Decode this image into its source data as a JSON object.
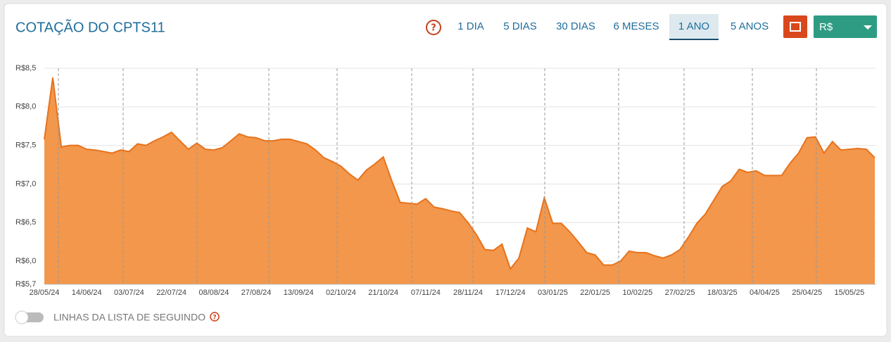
{
  "header": {
    "title": "COTAÇÃO DO CPTS11",
    "periods": [
      "1 DIA",
      "5 DIAS",
      "30 DIAS",
      "6 MESES",
      "1 ANO",
      "5 ANOS"
    ],
    "currency": "R$"
  },
  "chart_data": {
    "type": "area",
    "color": "#f2974b",
    "line_color": "#e8721c",
    "grid": true,
    "categories": [
      "28/05/24",
      null,
      null,
      null,
      null,
      "14/06/24",
      null,
      null,
      null,
      null,
      "03/07/24",
      null,
      null,
      null,
      null,
      "22/07/24",
      null,
      null,
      null,
      null,
      "08/08/24",
      null,
      null,
      null,
      null,
      "27/08/24",
      null,
      null,
      null,
      null,
      "13/09/24",
      null,
      null,
      null,
      null,
      "02/10/24",
      null,
      null,
      null,
      null,
      "21/10/24",
      null,
      null,
      null,
      null,
      "07/11/24",
      null,
      null,
      null,
      null,
      "28/11/24",
      null,
      null,
      null,
      null,
      "17/12/24",
      null,
      null,
      null,
      null,
      "03/01/25",
      null,
      null,
      null,
      null,
      "22/01/25",
      null,
      null,
      null,
      null,
      "10/02/25",
      null,
      null,
      null,
      null,
      "27/02/25",
      null,
      null,
      null,
      null,
      "18/03/25",
      null,
      null,
      null,
      null,
      "04/04/25",
      null,
      null,
      null,
      null,
      "25/04/25",
      null,
      null,
      null,
      null,
      "15/05/25",
      null,
      null,
      null
    ],
    "values": [
      7.58,
      8.38,
      7.48,
      7.5,
      7.5,
      7.45,
      7.44,
      7.42,
      7.4,
      7.44,
      7.42,
      7.52,
      7.5,
      7.56,
      7.61,
      7.67,
      7.56,
      7.45,
      7.53,
      7.45,
      7.44,
      7.47,
      7.56,
      7.65,
      7.61,
      7.6,
      7.56,
      7.56,
      7.58,
      7.58,
      7.55,
      7.52,
      7.44,
      7.34,
      7.29,
      7.23,
      7.13,
      7.05,
      7.18,
      7.26,
      7.35,
      7.04,
      6.76,
      6.75,
      6.74,
      6.81,
      6.7,
      6.68,
      6.65,
      6.63,
      6.5,
      6.34,
      6.15,
      6.14,
      6.22,
      5.9,
      6.04,
      6.43,
      6.38,
      6.82,
      6.49,
      6.49,
      6.38,
      6.25,
      6.11,
      6.08,
      5.95,
      5.95,
      6.0,
      6.13,
      6.11,
      6.11,
      6.07,
      6.04,
      6.08,
      6.15,
      6.31,
      6.49,
      6.61,
      6.79,
      6.97,
      7.04,
      7.19,
      7.15,
      7.17,
      7.11,
      7.11,
      7.11,
      7.27,
      7.4,
      7.6,
      7.61,
      7.4,
      7.55,
      7.44,
      7.45,
      7.46,
      7.45,
      7.34
    ],
    "ylim": [
      5.7,
      8.5
    ],
    "yticks": [
      {
        "value": 5.7,
        "label": "R$5,7"
      },
      {
        "value": 6.0,
        "label": "R$6,0"
      },
      {
        "value": 6.5,
        "label": "R$6,5"
      },
      {
        "value": 7.0,
        "label": "R$7,0"
      },
      {
        "value": 7.5,
        "label": "R$7,5"
      },
      {
        "value": 8.0,
        "label": "R$8,0"
      },
      {
        "value": 8.5,
        "label": "R$8,5"
      }
    ]
  },
  "footer": {
    "toggle_label": "LINHAS DA LISTA DE SEGUINDO"
  }
}
